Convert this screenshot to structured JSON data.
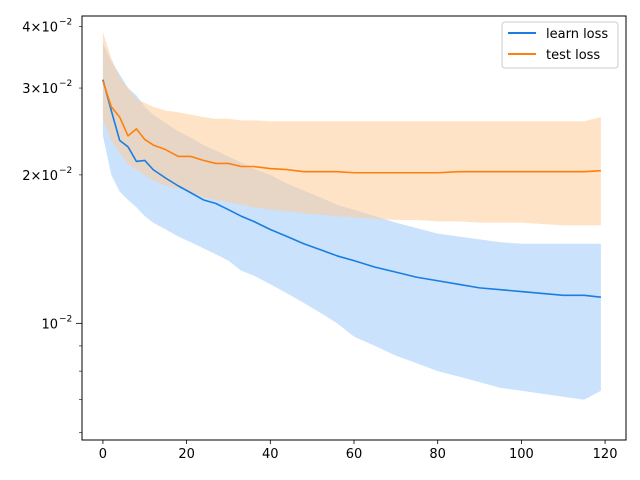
{
  "chart_data": {
    "type": "line",
    "title": "",
    "xlabel": "",
    "ylabel": "",
    "yscale": "log",
    "xlim": [
      -5,
      125
    ],
    "ylim": [
      0.0058,
      0.042
    ],
    "grid": false,
    "legend_position": "top-right",
    "x_ticks": [
      0,
      20,
      40,
      60,
      80,
      100,
      120
    ],
    "x_tick_labels": [
      "0",
      "20",
      "40",
      "60",
      "80",
      "100",
      "120"
    ],
    "y_major_ticks": [
      0.01
    ],
    "y_major_tick_labels": [
      "10",
      "−2"
    ],
    "y_minor_ticks": [
      0.02,
      0.03,
      0.04
    ],
    "y_minor_tick_labels": [
      {
        "mantissa": "2×10",
        "exp": "−2"
      },
      {
        "mantissa": "3×10",
        "exp": "−2"
      },
      {
        "mantissa": "4×10",
        "exp": "−2"
      }
    ],
    "series": [
      {
        "name": "learn loss",
        "color": "#1a7ee0",
        "band_color": "#9ecbf7",
        "x": [
          0,
          2,
          4,
          6,
          8,
          10,
          12,
          15,
          18,
          21,
          24,
          27,
          30,
          33,
          36,
          40,
          44,
          48,
          52,
          56,
          60,
          65,
          70,
          75,
          80,
          85,
          90,
          95,
          100,
          105,
          110,
          115,
          119
        ],
        "mean": [
          0.0312,
          0.027,
          0.0235,
          0.0228,
          0.0213,
          0.0214,
          0.0205,
          0.0197,
          0.019,
          0.0184,
          0.0178,
          0.0175,
          0.017,
          0.0165,
          0.0161,
          0.0155,
          0.015,
          0.0145,
          0.0141,
          0.0137,
          0.0134,
          0.013,
          0.0127,
          0.0124,
          0.0122,
          0.012,
          0.0118,
          0.0117,
          0.0116,
          0.0115,
          0.0114,
          0.0114,
          0.0113
        ],
        "lower": [
          0.024,
          0.02,
          0.0185,
          0.0178,
          0.0172,
          0.0165,
          0.016,
          0.0155,
          0.015,
          0.0146,
          0.0142,
          0.0138,
          0.0134,
          0.0128,
          0.0125,
          0.012,
          0.0115,
          0.011,
          0.0105,
          0.01,
          0.0094,
          0.009,
          0.0086,
          0.0083,
          0.008,
          0.0078,
          0.0076,
          0.0074,
          0.0073,
          0.0072,
          0.0071,
          0.007,
          0.0073
        ],
        "upper": [
          0.037,
          0.034,
          0.032,
          0.03,
          0.029,
          0.0275,
          0.0265,
          0.0255,
          0.0245,
          0.0238,
          0.023,
          0.0224,
          0.0218,
          0.0212,
          0.0206,
          0.02,
          0.0192,
          0.0186,
          0.018,
          0.0174,
          0.017,
          0.0165,
          0.016,
          0.0156,
          0.0152,
          0.015,
          0.0148,
          0.0146,
          0.0145,
          0.0145,
          0.0145,
          0.0145,
          0.0145
        ]
      },
      {
        "name": "test loss",
        "color": "#ff7f0e",
        "band_color": "#ffcc99",
        "x": [
          0,
          2,
          4,
          6,
          8,
          10,
          12,
          15,
          18,
          21,
          24,
          27,
          30,
          33,
          36,
          40,
          44,
          48,
          52,
          56,
          60,
          65,
          70,
          75,
          80,
          85,
          90,
          95,
          100,
          105,
          110,
          115,
          119
        ],
        "mean": [
          0.031,
          0.0275,
          0.0262,
          0.024,
          0.0248,
          0.0236,
          0.023,
          0.0225,
          0.0218,
          0.0218,
          0.0214,
          0.0211,
          0.0211,
          0.0208,
          0.0208,
          0.0206,
          0.0205,
          0.0203,
          0.0203,
          0.0203,
          0.0202,
          0.0202,
          0.0202,
          0.0202,
          0.0202,
          0.0203,
          0.0203,
          0.0203,
          0.0203,
          0.0203,
          0.0203,
          0.0203,
          0.0204
        ],
        "lower": [
          0.026,
          0.0235,
          0.0222,
          0.021,
          0.0205,
          0.02,
          0.0195,
          0.019,
          0.0188,
          0.0185,
          0.018,
          0.0178,
          0.0176,
          0.0174,
          0.0172,
          0.017,
          0.0169,
          0.0167,
          0.0166,
          0.0165,
          0.0164,
          0.0163,
          0.0162,
          0.0162,
          0.0161,
          0.0161,
          0.016,
          0.016,
          0.016,
          0.0159,
          0.0158,
          0.0158,
          0.0158
        ],
        "upper": [
          0.039,
          0.0345,
          0.0315,
          0.03,
          0.0285,
          0.028,
          0.0275,
          0.027,
          0.0268,
          0.0265,
          0.0262,
          0.026,
          0.026,
          0.0258,
          0.0258,
          0.0257,
          0.0257,
          0.0257,
          0.0257,
          0.0257,
          0.0257,
          0.0257,
          0.0257,
          0.0257,
          0.0257,
          0.0257,
          0.0257,
          0.0257,
          0.0257,
          0.0257,
          0.0257,
          0.0257,
          0.0262
        ]
      }
    ]
  }
}
